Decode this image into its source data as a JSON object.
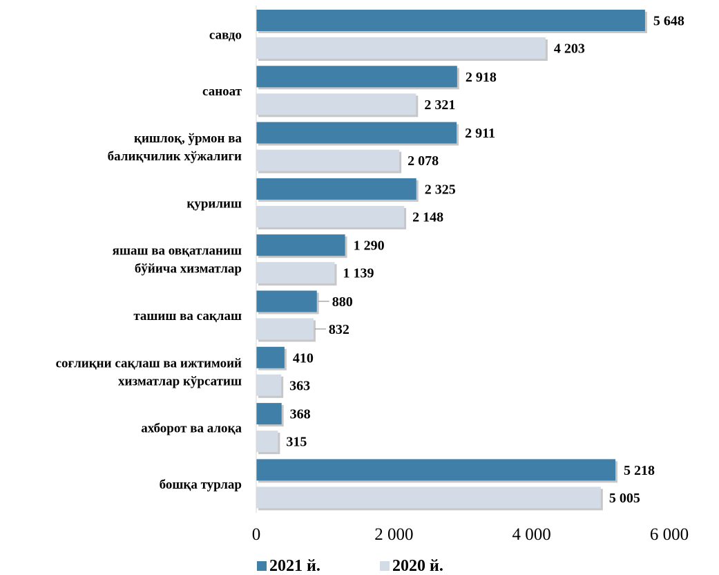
{
  "chart_data": {
    "type": "bar",
    "orientation": "horizontal",
    "categories": [
      [
        "савдо"
      ],
      [
        "саноат"
      ],
      [
        "қишлоқ, ўрмон ва",
        "балиқчилик хўжалиги"
      ],
      [
        "қурилиш"
      ],
      [
        "яшаш ва овқатланиш",
        "бўйича хизматлар"
      ],
      [
        "ташиш ва сақлаш"
      ],
      [
        "соғлиқни сақлаш ва ижтимоий",
        "хизматлар кўрсатиш"
      ],
      [
        "ахборот ва алоқа"
      ],
      [
        "бошқа турлар"
      ]
    ],
    "series": [
      {
        "name": "2021 й.",
        "color": "#3f7fa8",
        "values": [
          5648,
          2918,
          2911,
          2325,
          1290,
          880,
          410,
          368,
          5218
        ],
        "labels": [
          "5 648",
          "2 918",
          "2 911",
          "2 325",
          "1 290",
          "880",
          "410",
          "368",
          "5 218"
        ]
      },
      {
        "name": "2020 й.",
        "color": "#d3dbe6",
        "values": [
          4203,
          2321,
          2078,
          2148,
          1139,
          832,
          363,
          315,
          5005
        ],
        "labels": [
          "4 203",
          "2 321",
          "2 078",
          "2 148",
          "1 139",
          "832",
          "363",
          "315",
          "5 005"
        ]
      }
    ],
    "xlim": [
      0,
      6000
    ],
    "x_ticks": [
      0,
      2000,
      4000,
      6000
    ],
    "x_tick_labels": [
      "0",
      "2 000",
      "4 000",
      "6 000"
    ],
    "grid": false,
    "legend_position": "bottom"
  }
}
